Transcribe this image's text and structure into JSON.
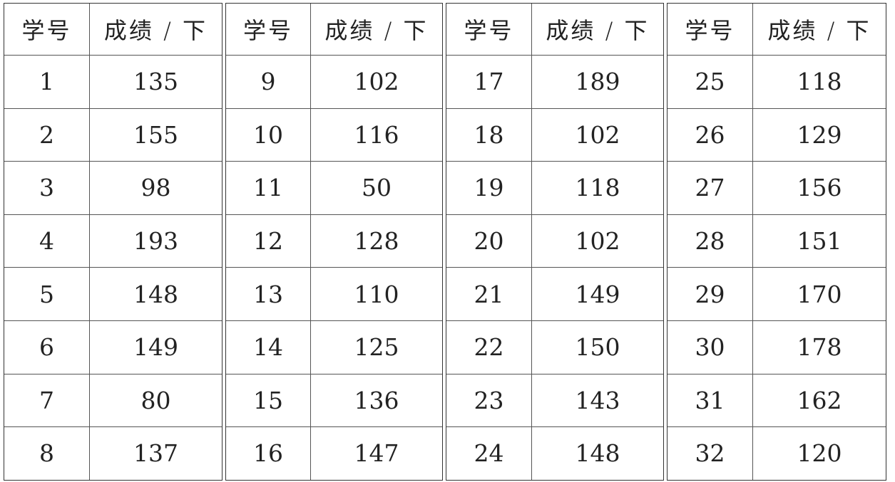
{
  "header": {
    "id_label": "学号",
    "score_label": "成绩 / 下"
  },
  "groups": [
    {
      "rows": [
        [
          "1",
          "135"
        ],
        [
          "2",
          "155"
        ],
        [
          "3",
          "98"
        ],
        [
          "4",
          "193"
        ],
        [
          "5",
          "148"
        ],
        [
          "6",
          "149"
        ],
        [
          "7",
          "80"
        ],
        [
          "8",
          "137"
        ]
      ]
    },
    {
      "rows": [
        [
          "9",
          "102"
        ],
        [
          "10",
          "116"
        ],
        [
          "11",
          "50"
        ],
        [
          "12",
          "128"
        ],
        [
          "13",
          "110"
        ],
        [
          "14",
          "125"
        ],
        [
          "15",
          "136"
        ],
        [
          "16",
          "147"
        ]
      ]
    },
    {
      "rows": [
        [
          "17",
          "189"
        ],
        [
          "18",
          "102"
        ],
        [
          "19",
          "118"
        ],
        [
          "20",
          "102"
        ],
        [
          "21",
          "149"
        ],
        [
          "22",
          "150"
        ],
        [
          "23",
          "143"
        ],
        [
          "24",
          "148"
        ]
      ]
    },
    {
      "rows": [
        [
          "25",
          "118"
        ],
        [
          "26",
          "129"
        ],
        [
          "27",
          "156"
        ],
        [
          "28",
          "151"
        ],
        [
          "29",
          "170"
        ],
        [
          "30",
          "178"
        ],
        [
          "31",
          "162"
        ],
        [
          "32",
          "120"
        ]
      ]
    }
  ]
}
